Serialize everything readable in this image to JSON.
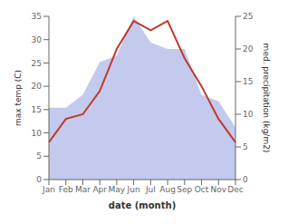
{
  "chart_data": {
    "type": "line",
    "xlabel": "date (month)",
    "ylabel": "max temp (C)",
    "y2label": "med. precipitation (kg/m2)",
    "categories": [
      "Jan",
      "Feb",
      "Mar",
      "Apr",
      "May",
      "Jun",
      "Jul",
      "Aug",
      "Sep",
      "Oct",
      "Nov",
      "Dec"
    ],
    "series": [
      {
        "type": "area",
        "axis": "y2",
        "color": "#b0b8e8",
        "values": [
          11,
          11,
          13,
          18,
          19,
          25,
          21,
          20,
          20,
          13,
          12,
          8
        ]
      },
      {
        "type": "line",
        "color": "#c0392b",
        "values": [
          8,
          13,
          14,
          19,
          28,
          34,
          32,
          34,
          26,
          20,
          13,
          8
        ]
      }
    ],
    "ylim": [
      0,
      35
    ],
    "yticks": [
      0,
      5,
      10,
      15,
      20,
      25,
      30,
      35
    ],
    "y2lim": [
      0,
      25
    ],
    "y2ticks": [
      0,
      5,
      10,
      15,
      20,
      25
    ],
    "grid": false
  }
}
